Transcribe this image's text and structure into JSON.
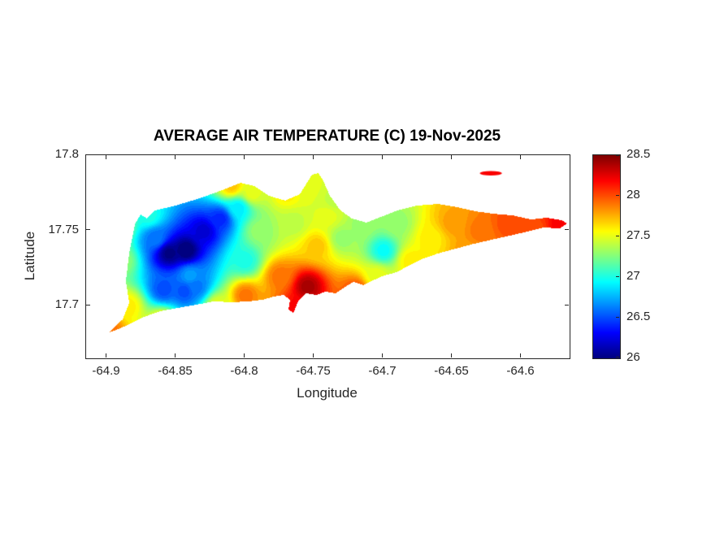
{
  "chart_data": {
    "type": "heatmap",
    "variant": "filled_contour_map",
    "title": "AVERAGE AIR TEMPERATURE (C) 19-Nov-2025",
    "xlabel": "Longitude",
    "ylabel": "Latitude",
    "xlim": [
      -64.915,
      -64.565
    ],
    "ylim": [
      17.665,
      17.8
    ],
    "xticks": [
      -64.9,
      -64.85,
      -64.8,
      -64.75,
      -64.7,
      -64.65,
      -64.6
    ],
    "xtick_labels": [
      "-64.9",
      "-64.85",
      "-64.8",
      "-64.75",
      "-64.7",
      "-64.65",
      "-64.6"
    ],
    "yticks": [
      17.7,
      17.75,
      17.8
    ],
    "ytick_labels": [
      "17.7",
      "17.75",
      "17.8"
    ],
    "colormap": "jet",
    "clim": [
      26,
      28.5
    ],
    "colorbar_ticks": [
      26,
      26.5,
      27,
      27.5,
      28,
      28.5
    ],
    "colorbar_tick_labels": [
      "26",
      "26.5",
      "27",
      "27.5",
      "28",
      "28.5"
    ],
    "contour_step": 0.05,
    "legend_position": "right",
    "grid": false,
    "island_outline": [
      [
        -64.8985,
        17.6823
      ],
      [
        -64.8885,
        17.6909
      ],
      [
        -64.8838,
        17.7017
      ],
      [
        -64.8862,
        17.7163
      ],
      [
        -64.8838,
        17.7352
      ],
      [
        -64.8797,
        17.7541
      ],
      [
        -64.8756,
        17.7606
      ],
      [
        -64.8709,
        17.7579
      ],
      [
        -64.865,
        17.7633
      ],
      [
        -64.8503,
        17.7665
      ],
      [
        -64.8326,
        17.7714
      ],
      [
        -64.815,
        17.7773
      ],
      [
        -64.8032,
        17.7816
      ],
      [
        -64.7932,
        17.7795
      ],
      [
        -64.7826,
        17.773
      ],
      [
        -64.7709,
        17.7698
      ],
      [
        -64.7603,
        17.7741
      ],
      [
        -64.7515,
        17.787
      ],
      [
        -64.7468,
        17.7881
      ],
      [
        -64.7432,
        17.7827
      ],
      [
        -64.7385,
        17.773
      ],
      [
        -64.7309,
        17.7633
      ],
      [
        -64.7226,
        17.7579
      ],
      [
        -64.712,
        17.7552
      ],
      [
        -64.7015,
        17.759
      ],
      [
        -64.6897,
        17.7633
      ],
      [
        -64.6756,
        17.7665
      ],
      [
        -64.6603,
        17.7676
      ],
      [
        -64.6462,
        17.7654
      ],
      [
        -64.6332,
        17.7627
      ],
      [
        -64.6203,
        17.7611
      ],
      [
        -64.6062,
        17.76
      ],
      [
        -64.5932,
        17.7573
      ],
      [
        -64.5815,
        17.7584
      ],
      [
        -64.5709,
        17.7568
      ],
      [
        -64.5668,
        17.7546
      ],
      [
        -64.5721,
        17.7514
      ],
      [
        -64.5838,
        17.7519
      ],
      [
        -64.5956,
        17.7492
      ],
      [
        -64.6085,
        17.7465
      ],
      [
        -64.6215,
        17.7438
      ],
      [
        -64.6344,
        17.7411
      ],
      [
        -64.6474,
        17.7379
      ],
      [
        -64.6603,
        17.7347
      ],
      [
        -64.6721,
        17.7309
      ],
      [
        -64.6826,
        17.726
      ],
      [
        -64.6903,
        17.7222
      ],
      [
        -64.6991,
        17.7201
      ],
      [
        -64.7074,
        17.7168
      ],
      [
        -64.7144,
        17.7136
      ],
      [
        -64.7215,
        17.7158
      ],
      [
        -64.7274,
        17.7125
      ],
      [
        -64.7344,
        17.7082
      ],
      [
        -64.7415,
        17.7093
      ],
      [
        -64.7485,
        17.7071
      ],
      [
        -64.7556,
        17.7082
      ],
      [
        -64.7615,
        17.7028
      ],
      [
        -64.765,
        17.6952
      ],
      [
        -64.7685,
        17.6974
      ],
      [
        -64.7674,
        17.7039
      ],
      [
        -64.7721,
        17.7071
      ],
      [
        -64.7791,
        17.706
      ],
      [
        -64.7874,
        17.7039
      ],
      [
        -64.7974,
        17.7028
      ],
      [
        -64.8091,
        17.7023
      ],
      [
        -64.8226,
        17.7028
      ],
      [
        -64.8356,
        17.7006
      ],
      [
        -64.8485,
        17.6985
      ],
      [
        -64.8615,
        17.6963
      ],
      [
        -64.8732,
        17.6925
      ],
      [
        -64.885,
        17.6871
      ],
      [
        -64.8944,
        17.6834
      ]
    ],
    "islets": [
      {
        "center": [
          -64.622,
          17.788
        ],
        "rx": 0.008,
        "ry": 0.0015,
        "temp": 28.2
      }
    ],
    "samples": [
      [
        -64.898,
        17.684,
        27.9
      ],
      [
        -64.885,
        17.7,
        27.6
      ],
      [
        -64.89,
        17.73,
        27.3
      ],
      [
        -64.893,
        17.755,
        27.6
      ],
      [
        -64.87,
        17.76,
        27.0
      ],
      [
        -64.865,
        17.745,
        26.6
      ],
      [
        -64.855,
        17.735,
        26.0
      ],
      [
        -64.843,
        17.737,
        25.95
      ],
      [
        -64.83,
        17.75,
        26.2
      ],
      [
        -64.818,
        17.758,
        26.4
      ],
      [
        -64.805,
        17.765,
        26.9
      ],
      [
        -64.84,
        17.72,
        26.7
      ],
      [
        -64.859,
        17.711,
        26.5
      ],
      [
        -64.844,
        17.71,
        26.5
      ],
      [
        -64.836,
        17.713,
        26.6
      ],
      [
        -64.82,
        17.7,
        27.5
      ],
      [
        -64.86,
        17.69,
        27.6
      ],
      [
        -64.8,
        17.707,
        27.9
      ],
      [
        -64.8,
        17.73,
        27.0
      ],
      [
        -64.79,
        17.75,
        27.3
      ],
      [
        -64.795,
        17.775,
        27.5
      ],
      [
        -64.81,
        17.78,
        27.7
      ],
      [
        -64.77,
        17.775,
        27.6
      ],
      [
        -64.765,
        17.755,
        27.4
      ],
      [
        -64.775,
        17.72,
        27.9
      ],
      [
        -64.755,
        17.713,
        28.4
      ],
      [
        -64.763,
        17.698,
        28.2
      ],
      [
        -64.748,
        17.74,
        27.7
      ],
      [
        -64.74,
        17.76,
        27.5
      ],
      [
        -64.755,
        17.78,
        27.5
      ],
      [
        -64.735,
        17.77,
        27.4
      ],
      [
        -64.73,
        17.745,
        27.3
      ],
      [
        -64.715,
        17.755,
        27.3
      ],
      [
        -64.7,
        17.737,
        26.95
      ],
      [
        -64.705,
        17.72,
        27.5
      ],
      [
        -64.72,
        17.71,
        28.0
      ],
      [
        -64.69,
        17.755,
        27.3
      ],
      [
        -64.68,
        17.73,
        27.6
      ],
      [
        -64.665,
        17.745,
        27.6
      ],
      [
        -64.65,
        17.755,
        27.8
      ],
      [
        -64.64,
        17.735,
        27.8
      ],
      [
        -64.63,
        17.75,
        27.9
      ],
      [
        -64.61,
        17.755,
        28.0
      ],
      [
        -64.59,
        17.75,
        28.0
      ],
      [
        -64.572,
        17.754,
        28.2
      ]
    ]
  }
}
